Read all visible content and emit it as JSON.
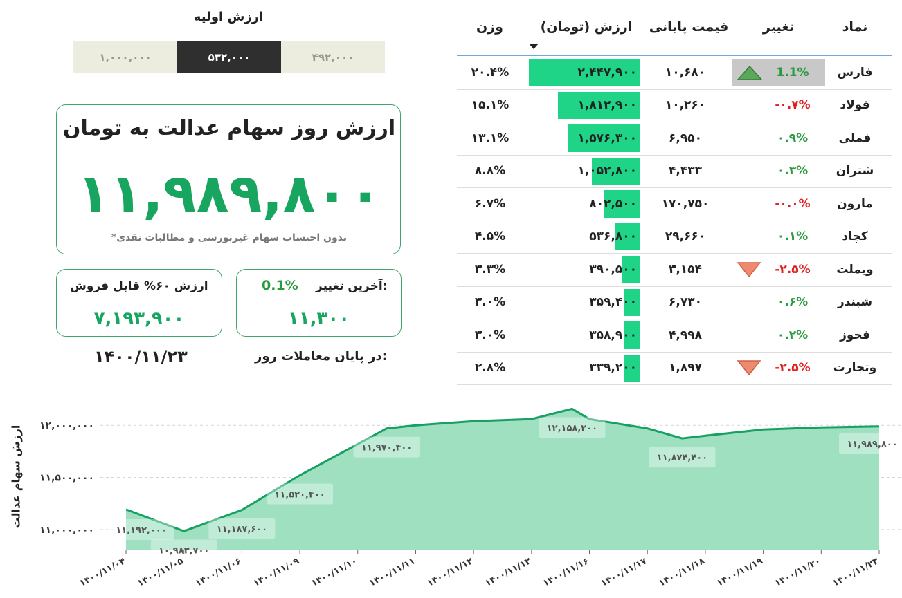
{
  "initial_value": {
    "title": "ارزش اولیه",
    "options": [
      "۱,۰۰۰,۰۰۰",
      "۵۳۲,۰۰۰",
      "۴۹۲,۰۰۰"
    ],
    "selected": "۵۳۲,۰۰۰"
  },
  "main_card": {
    "title": "ارزش روز سهام عدالت به تومان",
    "value": "۱۱,۹۸۹,۸۰۰",
    "note": "*بدون احتساب سهام غیربورسی و مطالبات نقدی"
  },
  "last_change": {
    "label": "آخرین تغییر:",
    "percent": "0.1%",
    "value": "۱۱,۳۰۰"
  },
  "sellable": {
    "label": "ارزش ۶۰% قابل فروش",
    "value": "۷,۱۹۳,۹۰۰"
  },
  "trading_end": {
    "label": "در پایان معاملات روز:",
    "date": "۱۴۰۰/۱۱/۲۳"
  },
  "table": {
    "headers": {
      "symbol": "نماد",
      "change": "تغییر",
      "final_price": "قیمت پایانی",
      "value": "ارزش (تومان)",
      "weight": "وزن"
    },
    "sort_icon": "sort-down-triangle",
    "rows": [
      {
        "symbol": "فارس",
        "change": "1.1%",
        "dir": "pos",
        "arrow": "up",
        "price": "۱۰,۶۸۰",
        "value": "۲,۴۴۷,۹۰۰",
        "value_num": 2447900,
        "weight": "۲۰.۴%",
        "highlight": true
      },
      {
        "symbol": "فولاد",
        "change": "-۰.۷%",
        "dir": "neg",
        "arrow": "",
        "price": "۱۰,۲۶۰",
        "value": "۱,۸۱۲,۹۰۰",
        "value_num": 1812900,
        "weight": "۱۵.۱%",
        "highlight": false
      },
      {
        "symbol": "فملی",
        "change": "۰.۹%",
        "dir": "pos",
        "arrow": "",
        "price": "۶,۹۵۰",
        "value": "۱,۵۷۶,۳۰۰",
        "value_num": 1576300,
        "weight": "۱۳.۱%",
        "highlight": false
      },
      {
        "symbol": "شتران",
        "change": "۰.۳%",
        "dir": "pos",
        "arrow": "",
        "price": "۴,۴۳۳",
        "value": "۱,۰۵۲,۸۰۰",
        "value_num": 1052800,
        "weight": "۸.۸%",
        "highlight": false
      },
      {
        "symbol": "مارون",
        "change": "-۰.۰%",
        "dir": "neg",
        "arrow": "",
        "price": "۱۷۰,۷۵۰",
        "value": "۸۰۲,۵۰۰",
        "value_num": 802500,
        "weight": "۶.۷%",
        "highlight": false
      },
      {
        "symbol": "کچاد",
        "change": "۰.۱%",
        "dir": "pos",
        "arrow": "",
        "price": "۲۹,۶۶۰",
        "value": "۵۳۶,۸۰۰",
        "value_num": 536800,
        "weight": "۴.۵%",
        "highlight": false
      },
      {
        "symbol": "وبملت",
        "change": "-۲.۵%",
        "dir": "neg",
        "arrow": "down",
        "price": "۳,۱۵۴",
        "value": "۳۹۰,۵۰۰",
        "value_num": 390500,
        "weight": "۳.۳%",
        "highlight": false
      },
      {
        "symbol": "شبندر",
        "change": "۰.۶%",
        "dir": "pos",
        "arrow": "",
        "price": "۶,۷۳۰",
        "value": "۳۵۹,۴۰۰",
        "value_num": 359400,
        "weight": "۳.۰%",
        "highlight": false
      },
      {
        "symbol": "فخوز",
        "change": "۰.۲%",
        "dir": "pos",
        "arrow": "",
        "price": "۴,۹۹۸",
        "value": "۳۵۸,۹۰۰",
        "value_num": 358900,
        "weight": "۳.۰%",
        "highlight": false
      },
      {
        "symbol": "وتجارت",
        "change": "-۲.۵%",
        "dir": "neg",
        "arrow": "down",
        "price": "۱,۸۹۷",
        "value": "۳۳۹,۲۰۰",
        "value_num": 339200,
        "weight": "۲.۸%",
        "highlight": false
      }
    ]
  },
  "colors": {
    "accent_green": "#18a560",
    "bar_green": "#1fd487",
    "area_fill": "#9ee0c0",
    "line_green": "#16a062",
    "negative": "#e02020",
    "positive": "#2a9a3f",
    "arrow_up": "#5aa85a",
    "arrow_down": "#f08a6e"
  },
  "chart_data": {
    "type": "area",
    "ylabel": "ارزش سهام عدالت",
    "ylim": [
      10800000,
      12300000
    ],
    "yticks": [
      11000000,
      11500000,
      12000000
    ],
    "ytick_labels": [
      "۱۱,۰۰۰,۰۰۰",
      "۱۱,۵۰۰,۰۰۰",
      "۱۲,۰۰۰,۰۰۰"
    ],
    "x_labels": [
      "۱۴۰۰/۱۱/۰۴",
      "۱۴۰۰/۱۱/۰۵",
      "۱۴۰۰/۱۱/۰۶",
      "۱۴۰۰/۱۱/۰۹",
      "۱۴۰۰/۱۱/۱۰",
      "۱۴۰۰/۱۱/۱۱",
      "۱۴۰۰/۱۱/۱۲",
      "۱۴۰۰/۱۱/۱۳",
      "۱۴۰۰/۱۱/۱۶",
      "۱۴۰۰/۱۱/۱۷",
      "۱۴۰۰/۱۱/۱۸",
      "۱۴۰۰/۱۱/۱۹",
      "۱۴۰۰/۱۱/۲۰",
      "۱۴۰۰/۱۱/۲۳"
    ],
    "points_x": [
      0,
      1,
      2,
      3,
      4,
      4.5,
      5,
      6,
      7,
      7.7,
      8,
      9,
      9.6,
      10,
      11,
      12,
      13
    ],
    "values": [
      11192000,
      10983700,
      11187600,
      11520400,
      11820000,
      11970400,
      12000000,
      12040000,
      12060000,
      12158200,
      12060000,
      11970000,
      11874400,
      11900000,
      11960000,
      11980000,
      11989800
    ],
    "annotations": [
      {
        "x": 0,
        "value": 11192000,
        "label": "۱۱,۱۹۲,۰۰۰"
      },
      {
        "x": 1,
        "value": 10983700,
        "label": "۱۰,۹۸۳,۷۰۰"
      },
      {
        "x": 2,
        "value": 11187600,
        "label": "۱۱,۱۸۷,۶۰۰"
      },
      {
        "x": 3,
        "value": 11520400,
        "label": "۱۱,۵۲۰,۴۰۰"
      },
      {
        "x": 4.5,
        "value": 11970400,
        "label": "۱۱,۹۷۰,۴۰۰"
      },
      {
        "x": 7.7,
        "value": 12158200,
        "label": "۱۲,۱۵۸,۲۰۰"
      },
      {
        "x": 9.6,
        "value": 11874400,
        "label": "۱۱,۸۷۴,۴۰۰"
      },
      {
        "x": 13,
        "value": 11989800,
        "label": "۱۱,۹۸۹,۸۰۰"
      }
    ]
  }
}
